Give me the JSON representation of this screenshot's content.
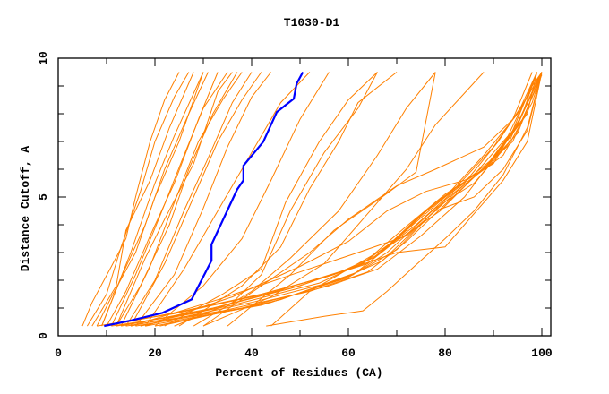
{
  "chart_data": {
    "type": "line",
    "title": "T1030-D1",
    "xlabel": "Percent of Residues (CA)",
    "ylabel": "Distance Cutoff, A",
    "xlim": [
      0,
      100
    ],
    "ylim": [
      0,
      10
    ],
    "xticks": [
      "0",
      "20",
      "40",
      "60",
      "80",
      "100"
    ],
    "yticks": [
      "0",
      "5",
      "10"
    ],
    "grid": false,
    "colors": {
      "highlight": "#0000ff",
      "others": "#ff8000"
    },
    "highlight_series": [
      [
        9.5,
        0.35
      ],
      [
        15,
        0.55
      ],
      [
        21.6,
        0.83
      ],
      [
        27.6,
        1.31
      ],
      [
        31.7,
        2.71
      ],
      [
        31.7,
        3.29
      ],
      [
        37.0,
        5.27
      ],
      [
        38.3,
        5.6
      ],
      [
        38.3,
        6.13
      ],
      [
        42.4,
        6.99
      ],
      [
        45.2,
        8.06
      ],
      [
        48.7,
        8.54
      ],
      [
        49.3,
        9.08
      ],
      [
        50.6,
        9.5
      ]
    ],
    "other_series": [
      [
        [
          5,
          0.35
        ],
        [
          7,
          1.2
        ],
        [
          11,
          2.5
        ],
        [
          14,
          3.5
        ],
        [
          16,
          5
        ],
        [
          19,
          7
        ],
        [
          22,
          8.5
        ],
        [
          25,
          9.5
        ]
      ],
      [
        [
          6,
          0.35
        ],
        [
          10,
          1.5
        ],
        [
          13,
          3.2
        ],
        [
          17,
          5.2
        ],
        [
          20,
          7
        ],
        [
          24,
          8.6
        ],
        [
          27,
          9.5
        ]
      ],
      [
        [
          7,
          0.35
        ],
        [
          12,
          1.8
        ],
        [
          14,
          3.8
        ],
        [
          19,
          5.6
        ],
        [
          23,
          7.5
        ],
        [
          28,
          9.5
        ]
      ],
      [
        [
          8,
          0.35
        ],
        [
          11,
          1.4
        ],
        [
          16,
          3
        ],
        [
          20,
          5
        ],
        [
          25,
          7
        ],
        [
          30,
          9.5
        ]
      ],
      [
        [
          9,
          0.35
        ],
        [
          13,
          2.1
        ],
        [
          18,
          4
        ],
        [
          22,
          6
        ],
        [
          27,
          8
        ],
        [
          31,
          9.5
        ]
      ],
      [
        [
          10,
          0.35
        ],
        [
          14,
          1.6
        ],
        [
          19,
          3.6
        ],
        [
          24,
          5.5
        ],
        [
          29,
          7.8
        ],
        [
          33,
          9.5
        ]
      ],
      [
        [
          11,
          0.35
        ],
        [
          16,
          2.2
        ],
        [
          21,
          4.3
        ],
        [
          26,
          6.5
        ],
        [
          30,
          8.2
        ],
        [
          35,
          9.5
        ]
      ],
      [
        [
          12,
          0.35
        ],
        [
          17,
          1.8
        ],
        [
          23,
          4
        ],
        [
          27,
          6
        ],
        [
          32,
          8
        ],
        [
          37,
          9.5
        ]
      ],
      [
        [
          13,
          0.35
        ],
        [
          19,
          2.5
        ],
        [
          24,
          4.8
        ],
        [
          29,
          7
        ],
        [
          34,
          8.5
        ],
        [
          38,
          9.5
        ]
      ],
      [
        [
          14,
          0.35
        ],
        [
          20,
          2
        ],
        [
          26,
          4.5
        ],
        [
          31,
          6.4
        ],
        [
          36,
          8.4
        ],
        [
          40,
          9.5
        ]
      ],
      [
        [
          15,
          0.35
        ],
        [
          22,
          2.6
        ],
        [
          28,
          5
        ],
        [
          33,
          7
        ],
        [
          38,
          8.5
        ],
        [
          42,
          9.5
        ]
      ],
      [
        [
          16,
          0.35
        ],
        [
          24,
          2.2
        ],
        [
          30,
          4.6
        ],
        [
          35,
          6.8
        ],
        [
          40,
          8.6
        ],
        [
          44,
          9.5
        ]
      ],
      [
        [
          12,
          0.35
        ],
        [
          18,
          2.8
        ],
        [
          22,
          4.2
        ],
        [
          28,
          6.2
        ],
        [
          33,
          8.8
        ],
        [
          36,
          9.5
        ]
      ],
      [
        [
          9,
          0.35
        ],
        [
          15,
          3
        ],
        [
          20,
          5.5
        ],
        [
          24,
          7.2
        ],
        [
          30,
          9.5
        ]
      ],
      [
        [
          18,
          0.35
        ],
        [
          26,
          2.4
        ],
        [
          32,
          4.2
        ],
        [
          40,
          6.6
        ],
        [
          46,
          8.4
        ],
        [
          52,
          9.5
        ]
      ],
      [
        [
          20,
          0.35
        ],
        [
          30,
          1.8
        ],
        [
          38,
          3.5
        ],
        [
          44,
          5.6
        ],
        [
          50,
          7.8
        ],
        [
          56,
          9.5
        ]
      ],
      [
        [
          22,
          0.35
        ],
        [
          34,
          1.5
        ],
        [
          42,
          2.4
        ],
        [
          47,
          4.8
        ],
        [
          54,
          7
        ],
        [
          60,
          8.5
        ],
        [
          66,
          9.5
        ]
      ],
      [
        [
          25,
          0.35
        ],
        [
          38,
          1.8
        ],
        [
          46,
          3.2
        ],
        [
          52,
          5.3
        ],
        [
          58,
          7
        ],
        [
          62,
          8.4
        ],
        [
          70,
          9.5
        ]
      ],
      [
        [
          28,
          0.35
        ],
        [
          40,
          1.6
        ],
        [
          48,
          2.8
        ],
        [
          58,
          4.5
        ],
        [
          66,
          6.5
        ],
        [
          72,
          8.2
        ],
        [
          78,
          9.5
        ]
      ],
      [
        [
          30,
          0.35
        ],
        [
          44,
          1.4
        ],
        [
          55,
          2.6
        ],
        [
          64,
          4.4
        ],
        [
          72,
          6
        ],
        [
          78,
          7.6
        ],
        [
          88,
          9.5
        ]
      ],
      [
        [
          24,
          0.35
        ],
        [
          36,
          1.2
        ],
        [
          42,
          2.2
        ],
        [
          48,
          4.5
        ],
        [
          55,
          6.6
        ],
        [
          62,
          8.2
        ],
        [
          66,
          9.5
        ]
      ],
      [
        [
          8,
          0.35
        ],
        [
          24,
          0.8
        ],
        [
          40,
          1.4
        ],
        [
          55,
          2.1
        ],
        [
          64,
          2.6
        ],
        [
          72,
          3.8
        ],
        [
          80,
          5
        ],
        [
          88,
          6.5
        ],
        [
          95,
          8
        ],
        [
          99,
          9.5
        ]
      ],
      [
        [
          10,
          0.35
        ],
        [
          26,
          0.9
        ],
        [
          42,
          1.5
        ],
        [
          57,
          2.2
        ],
        [
          66,
          2.9
        ],
        [
          74,
          4.2
        ],
        [
          82,
          5.3
        ],
        [
          90,
          6.8
        ],
        [
          96,
          8.3
        ],
        [
          100,
          9.5
        ]
      ],
      [
        [
          11,
          0.35
        ],
        [
          28,
          0.8
        ],
        [
          45,
          1.6
        ],
        [
          60,
          2.4
        ],
        [
          68,
          3.2
        ],
        [
          76,
          4.5
        ],
        [
          84,
          5.5
        ],
        [
          91,
          7
        ],
        [
          97,
          8.6
        ],
        [
          99,
          9.5
        ]
      ],
      [
        [
          12,
          0.35
        ],
        [
          30,
          0.9
        ],
        [
          48,
          1.7
        ],
        [
          62,
          2.5
        ],
        [
          70,
          3.5
        ],
        [
          78,
          4.8
        ],
        [
          86,
          5.8
        ],
        [
          93,
          7.2
        ],
        [
          98,
          9
        ],
        [
          100,
          9.5
        ]
      ],
      [
        [
          13,
          0.35
        ],
        [
          32,
          1
        ],
        [
          50,
          1.8
        ],
        [
          63,
          2.6
        ],
        [
          71,
          3.8
        ],
        [
          80,
          5.1
        ],
        [
          88,
          6
        ],
        [
          94,
          7.4
        ],
        [
          99,
          9.5
        ]
      ],
      [
        [
          14,
          0.35
        ],
        [
          34,
          0.9
        ],
        [
          52,
          1.6
        ],
        [
          64,
          2.3
        ],
        [
          72,
          3.4
        ],
        [
          81,
          4.9
        ],
        [
          89,
          6.2
        ],
        [
          95,
          7.6
        ],
        [
          100,
          9.5
        ]
      ],
      [
        [
          15,
          0.35
        ],
        [
          36,
          1.1
        ],
        [
          54,
          1.9
        ],
        [
          65,
          2.8
        ],
        [
          74,
          4
        ],
        [
          83,
          5.4
        ],
        [
          90,
          6.4
        ],
        [
          96,
          7.8
        ],
        [
          100,
          9.4
        ]
      ],
      [
        [
          16,
          0.35
        ],
        [
          38,
          1
        ],
        [
          56,
          1.8
        ],
        [
          66,
          2.4
        ],
        [
          75,
          3.6
        ],
        [
          84,
          5
        ],
        [
          91,
          6.6
        ],
        [
          97,
          8
        ],
        [
          99,
          9.5
        ]
      ],
      [
        [
          17,
          0.35
        ],
        [
          40,
          1.2
        ],
        [
          58,
          2
        ],
        [
          67,
          2.7
        ],
        [
          76,
          4.2
        ],
        [
          85,
          5.6
        ],
        [
          92,
          6.5
        ],
        [
          98,
          8.4
        ],
        [
          100,
          9.5
        ]
      ],
      [
        [
          18,
          0.35
        ],
        [
          42,
          1.1
        ],
        [
          60,
          2.1
        ],
        [
          68,
          3
        ],
        [
          78,
          4.6
        ],
        [
          86,
          5.5
        ],
        [
          93,
          6.9
        ],
        [
          98,
          8.8
        ],
        [
          100,
          9.5
        ]
      ],
      [
        [
          20,
          0.35
        ],
        [
          44,
          1.2
        ],
        [
          61,
          2.2
        ],
        [
          69,
          3.3
        ],
        [
          79,
          4.5
        ],
        [
          87,
          5.9
        ],
        [
          94,
          7
        ],
        [
          99,
          9
        ],
        [
          100,
          9.5
        ]
      ],
      [
        [
          21,
          0.35
        ],
        [
          46,
          1.3
        ],
        [
          62,
          2.3
        ],
        [
          70,
          3.1
        ],
        [
          80,
          4.9
        ],
        [
          88,
          6
        ],
        [
          95,
          7.3
        ],
        [
          100,
          9.5
        ]
      ],
      [
        [
          43,
          0.35
        ],
        [
          55,
          0.7
        ],
        [
          63,
          0.9
        ],
        [
          68,
          1.6
        ],
        [
          73,
          2.4
        ],
        [
          80,
          3.5
        ],
        [
          86,
          4.5
        ],
        [
          92,
          5.8
        ],
        [
          97,
          7.5
        ],
        [
          100,
          9.5
        ]
      ],
      [
        [
          15,
          0.35
        ],
        [
          33,
          1.3
        ],
        [
          50,
          2.3
        ],
        [
          62,
          3
        ],
        [
          72,
          3.6
        ],
        [
          78,
          4.5
        ],
        [
          86,
          5
        ],
        [
          92,
          6
        ],
        [
          97,
          7.4
        ],
        [
          100,
          9.5
        ]
      ],
      [
        [
          18,
          0.35
        ],
        [
          36,
          1.4
        ],
        [
          50,
          2.5
        ],
        [
          60,
          3.4
        ],
        [
          68,
          4.5
        ],
        [
          76,
          5.2
        ],
        [
          84,
          5.6
        ],
        [
          90,
          6.2
        ],
        [
          96,
          8
        ],
        [
          99,
          9.5
        ]
      ],
      [
        [
          30,
          0.35
        ],
        [
          42,
          1.8
        ],
        [
          52,
          3
        ],
        [
          60,
          4.2
        ],
        [
          70,
          5.4
        ],
        [
          78,
          6
        ],
        [
          88,
          6.8
        ],
        [
          94,
          7.8
        ],
        [
          98,
          9.5
        ]
      ],
      [
        [
          35,
          0.35
        ],
        [
          48,
          2.2
        ],
        [
          57,
          3.8
        ],
        [
          67,
          5
        ],
        [
          74,
          5.9
        ],
        [
          78,
          9.5
        ]
      ],
      [
        [
          44,
          0.35
        ],
        [
          52,
          1.6
        ],
        [
          60,
          2.4
        ],
        [
          70,
          3
        ],
        [
          80,
          3.2
        ],
        [
          86,
          4.4
        ],
        [
          92,
          5.6
        ],
        [
          97,
          7
        ],
        [
          100,
          9.5
        ]
      ]
    ]
  }
}
